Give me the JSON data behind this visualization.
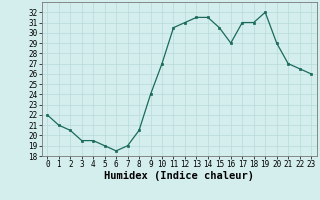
{
  "x": [
    0,
    1,
    2,
    3,
    4,
    5,
    6,
    7,
    8,
    9,
    10,
    11,
    12,
    13,
    14,
    15,
    16,
    17,
    18,
    19,
    20,
    21,
    22,
    23
  ],
  "y": [
    22,
    21,
    20.5,
    19.5,
    19.5,
    19,
    18.5,
    19,
    20.5,
    24,
    27,
    30.5,
    31,
    31.5,
    31.5,
    30.5,
    29,
    31,
    31,
    32,
    29,
    27,
    26.5,
    26
  ],
  "xlabel": "Humidex (Indice chaleur)",
  "ylim": [
    18,
    33
  ],
  "xlim": [
    -0.5,
    23.5
  ],
  "yticks": [
    18,
    19,
    20,
    21,
    22,
    23,
    24,
    25,
    26,
    27,
    28,
    29,
    30,
    31,
    32
  ],
  "xticks": [
    0,
    1,
    2,
    3,
    4,
    5,
    6,
    7,
    8,
    9,
    10,
    11,
    12,
    13,
    14,
    15,
    16,
    17,
    18,
    19,
    20,
    21,
    22,
    23
  ],
  "line_color": "#1a6b5a",
  "marker_color": "#1a6b5a",
  "bg_color": "#d4eeed",
  "grid_color": "#b8dada",
  "tick_fontsize": 5.5,
  "xlabel_fontsize": 7.5
}
